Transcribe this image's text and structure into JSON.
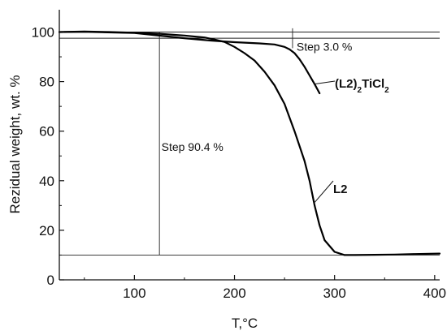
{
  "chart_data": {
    "type": "line",
    "xlabel": "T,°C",
    "ylabel": "Rezidual weight, wt. %",
    "xlim": [
      25,
      405
    ],
    "ylim": [
      0,
      109
    ],
    "xticks": [
      100,
      200,
      300,
      400
    ],
    "yticks": [
      0,
      20,
      40,
      60,
      80,
      100
    ],
    "grid": false,
    "series": [
      {
        "name": "L2",
        "label_parts": [
          "L2"
        ],
        "x": [
          25,
          50,
          75,
          100,
          125,
          150,
          170,
          180,
          190,
          200,
          210,
          220,
          230,
          240,
          250,
          260,
          270,
          275,
          280,
          285,
          290,
          300,
          310,
          320,
          340,
          360,
          380,
          405
        ],
        "y": [
          100,
          100.2,
          100,
          99.7,
          99.3,
          98.6,
          97.8,
          97.0,
          96.0,
          94.0,
          91.5,
          88.5,
          84.0,
          78.5,
          71.0,
          60.0,
          48.0,
          40.0,
          30.0,
          22.0,
          16.0,
          11.3,
          10.0,
          10.0,
          10.1,
          10.2,
          10.4,
          10.6
        ]
      },
      {
        "name": "(L2)2TiCl2",
        "label_parts": [
          "(L2)",
          "2",
          "TiCl",
          "2"
        ],
        "x": [
          25,
          50,
          100,
          150,
          175,
          200,
          225,
          240,
          250,
          255,
          260,
          265,
          270,
          275,
          280,
          285
        ],
        "y": [
          100,
          100.1,
          99.6,
          97.5,
          96.6,
          95.9,
          95.4,
          95.0,
          94.0,
          93.0,
          91.5,
          89.0,
          86.0,
          82.5,
          79.0,
          75.3
        ]
      }
    ],
    "reference_lines": {
      "horizontal": [
        100,
        97.5,
        10
      ],
      "vertical": [
        125,
        258
      ]
    },
    "annotations": [
      {
        "text": "Step 3.0 %",
        "x": 262,
        "y": 92.5
      },
      {
        "text": "Step 90.4 %",
        "x": 127,
        "y": 52
      }
    ]
  }
}
